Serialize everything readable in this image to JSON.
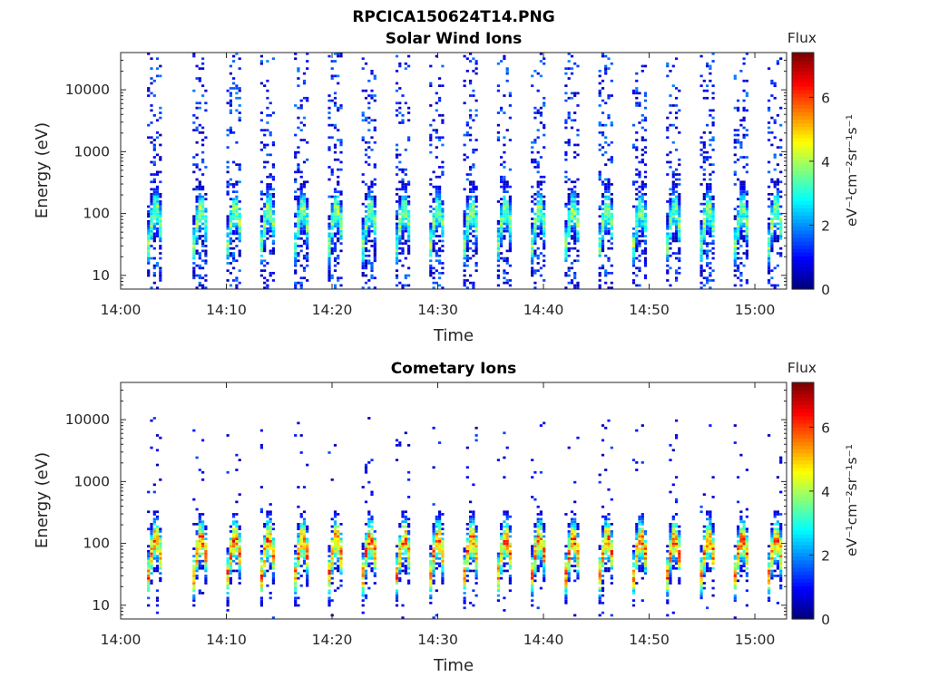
{
  "figure_title": "RPCICA150624T14.PNG",
  "chart_data": [
    {
      "type": "heatmap",
      "title": "Solar Wind Ions",
      "xlabel": "Time",
      "ylabel": "Energy (eV)",
      "y_scale": "log",
      "ylim": [
        6,
        40000
      ],
      "xlim_minutes_after_1400": [
        0,
        63
      ],
      "x_ticks": [
        "14:00",
        "14:10",
        "14:20",
        "14:30",
        "14:40",
        "14:50",
        "15:00"
      ],
      "y_ticks": [
        "10",
        "100",
        "1000",
        "10000"
      ],
      "colorbar": {
        "title": "Flux",
        "label": "eV⁻¹cm⁻²sr⁻¹s⁻¹",
        "ticks": [
          "0",
          "2",
          "4",
          "6"
        ],
        "range": [
          0,
          7.4
        ],
        "colormap": "jet"
      },
      "scan_start_minutes": [
        2.5,
        6.8,
        10.0,
        13.2,
        16.4,
        19.6,
        22.8,
        26.0,
        29.2,
        32.4,
        35.6,
        38.8,
        42.0,
        45.2,
        48.4,
        51.6,
        54.8,
        58.0,
        61.2
      ],
      "scan_duration_minutes": 1.4,
      "peak_energy_eV": 30,
      "peak_flux": 4.5,
      "max_energy_eV": 40000,
      "grid": false,
      "legend": "none"
    },
    {
      "type": "heatmap",
      "title": "Cometary Ions",
      "xlabel": "Time",
      "ylabel": "Energy (eV)",
      "y_scale": "log",
      "ylim": [
        6,
        40000
      ],
      "xlim_minutes_after_1400": [
        0,
        63
      ],
      "x_ticks": [
        "14:00",
        "14:10",
        "14:20",
        "14:30",
        "14:40",
        "14:50",
        "15:00"
      ],
      "y_ticks": [
        "10",
        "100",
        "1000",
        "10000"
      ],
      "colorbar": {
        "title": "Flux",
        "label": "eV⁻¹cm⁻²sr⁻¹s⁻¹",
        "ticks": [
          "0",
          "2",
          "4",
          "6"
        ],
        "range": [
          0,
          7.4
        ],
        "colormap": "jet"
      },
      "scan_start_minutes": [
        2.5,
        6.8,
        10.0,
        13.2,
        16.4,
        19.6,
        22.8,
        26.0,
        29.2,
        32.4,
        35.6,
        38.8,
        42.0,
        45.2,
        48.4,
        51.6,
        54.8,
        58.0,
        61.2
      ],
      "scan_duration_minutes": 1.4,
      "peak_energy_eV": 30,
      "peak_flux": 6.8,
      "max_energy_eV": 12000,
      "grid": false,
      "legend": "none"
    }
  ]
}
